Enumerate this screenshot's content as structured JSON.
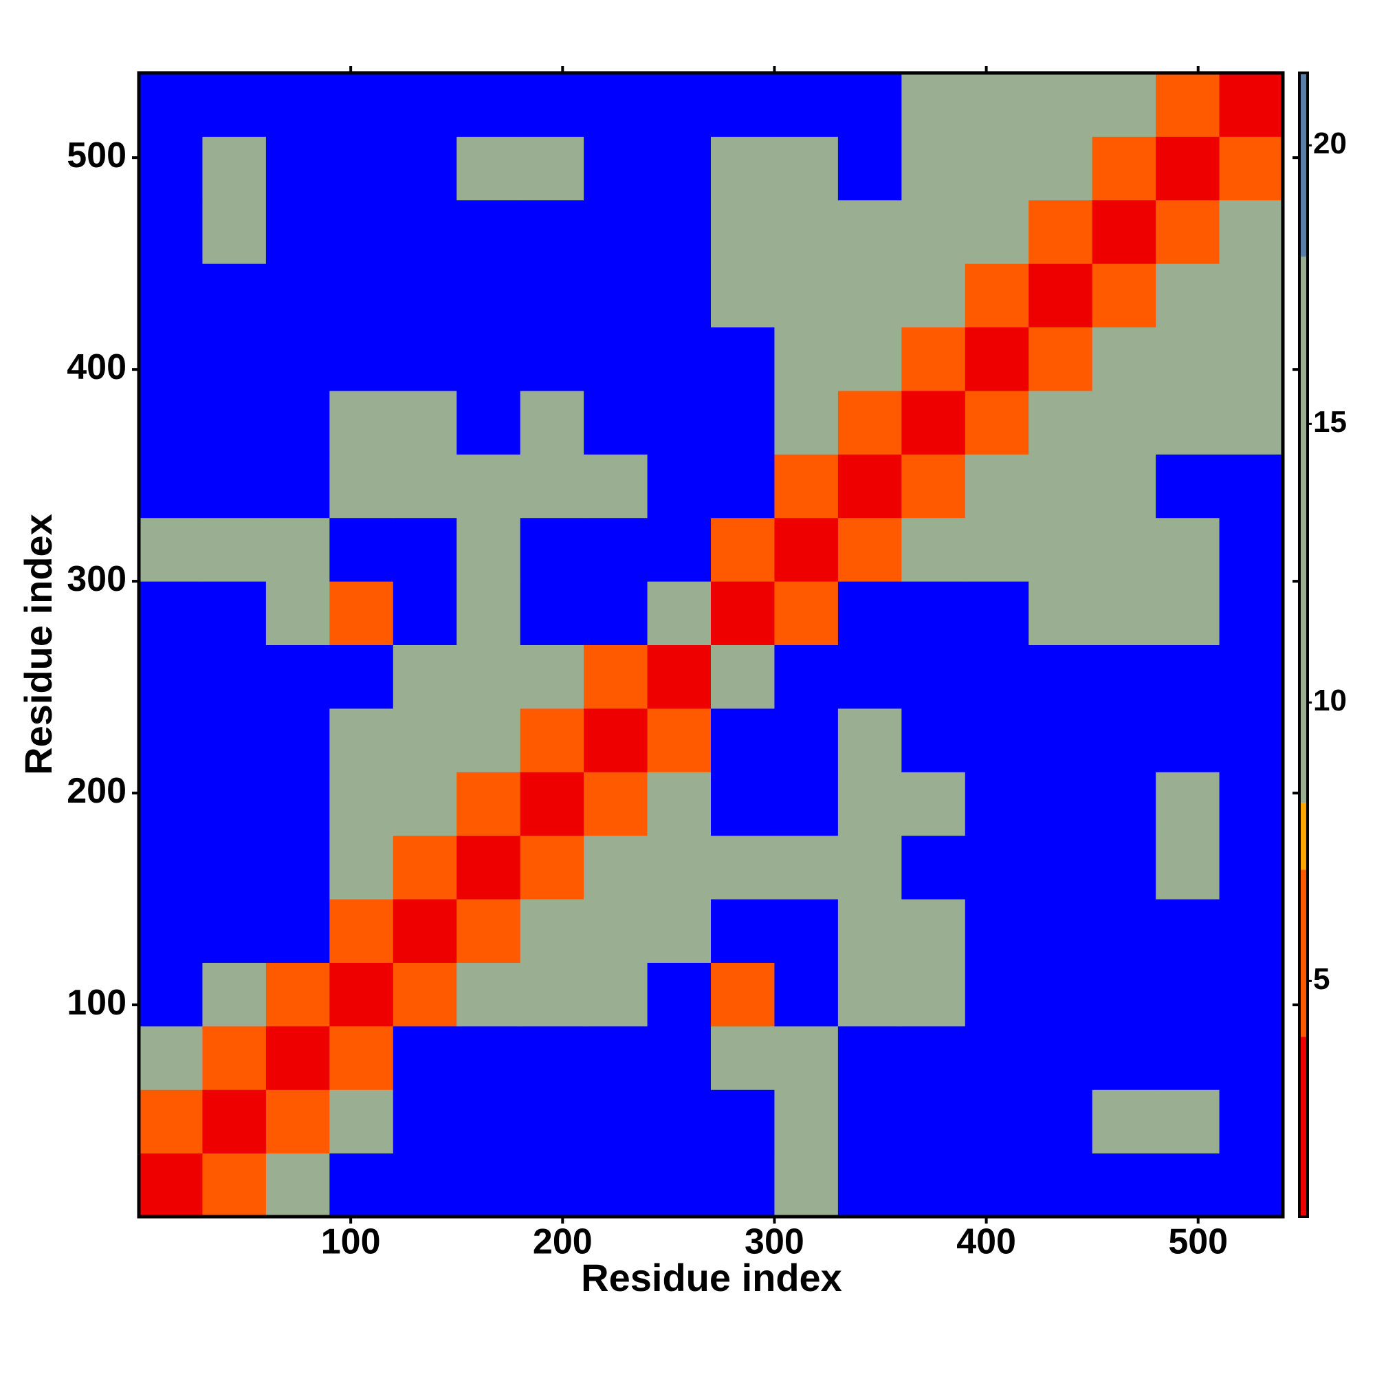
{
  "chart_data": {
    "type": "heatmap",
    "xlabel": "Residue index",
    "ylabel": "Residue index",
    "x_bins": [
      0,
      30,
      60,
      90,
      120,
      150,
      180,
      210,
      240,
      270,
      300,
      330,
      360,
      390,
      420,
      450,
      480,
      510,
      540
    ],
    "y_bins": [
      0,
      30,
      60,
      90,
      120,
      150,
      180,
      210,
      240,
      270,
      300,
      330,
      360,
      390,
      420,
      450,
      480,
      510,
      540
    ],
    "values": [
      [
        3.8,
        6,
        9,
        25,
        25,
        25,
        25,
        25,
        25,
        25,
        9,
        25,
        25,
        25,
        25,
        25,
        25,
        25
      ],
      [
        6,
        3.8,
        6,
        9,
        25,
        25,
        25,
        25,
        25,
        25,
        9,
        25,
        25,
        25,
        25,
        9,
        9,
        25
      ],
      [
        9,
        6,
        3.8,
        6,
        25,
        25,
        25,
        25,
        25,
        9,
        9,
        25,
        25,
        25,
        25,
        25,
        25,
        25
      ],
      [
        25,
        9,
        6,
        3.8,
        6,
        9,
        14,
        9,
        25,
        6,
        25,
        9,
        9,
        25,
        25,
        25,
        25,
        25
      ],
      [
        25,
        25,
        25,
        6,
        3.8,
        6,
        9,
        9,
        9,
        25,
        25,
        9,
        14,
        25,
        25,
        25,
        25,
        25
      ],
      [
        25,
        25,
        25,
        9,
        6,
        3.8,
        6,
        9,
        9,
        9,
        14,
        9,
        25,
        25,
        25,
        25,
        14,
        25
      ],
      [
        25,
        25,
        25,
        14,
        9,
        6,
        3.8,
        6,
        9,
        25,
        25,
        9,
        14,
        25,
        25,
        25,
        9,
        25
      ],
      [
        25,
        25,
        25,
        9,
        9,
        9,
        6,
        3.8,
        6,
        25,
        25,
        14,
        25,
        25,
        25,
        25,
        25,
        25
      ],
      [
        25,
        25,
        25,
        25,
        9,
        9,
        9,
        6,
        3.8,
        9,
        25,
        25,
        25,
        25,
        25,
        25,
        25,
        25
      ],
      [
        25,
        25,
        9,
        6,
        25,
        9,
        25,
        25,
        9,
        3.8,
        6,
        25,
        25,
        25,
        9,
        14,
        9,
        25
      ],
      [
        9,
        9,
        9,
        25,
        25,
        14,
        25,
        25,
        25,
        6,
        3.8,
        6,
        9,
        9,
        9,
        9,
        9,
        25
      ],
      [
        25,
        25,
        25,
        9,
        9,
        9,
        9,
        14,
        25,
        25,
        6,
        3.8,
        6,
        9,
        9,
        14,
        25,
        25
      ],
      [
        25,
        25,
        25,
        9,
        14,
        25,
        14,
        25,
        25,
        25,
        9,
        6,
        3.8,
        6,
        9,
        9,
        14,
        14
      ],
      [
        25,
        25,
        25,
        25,
        25,
        25,
        25,
        25,
        25,
        25,
        9,
        9,
        6,
        3.8,
        6,
        9,
        9,
        14
      ],
      [
        25,
        25,
        25,
        25,
        25,
        25,
        25,
        25,
        25,
        9,
        9,
        9,
        9,
        6,
        3.8,
        6,
        9,
        9
      ],
      [
        25,
        9,
        25,
        25,
        25,
        25,
        25,
        25,
        25,
        14,
        9,
        14,
        9,
        9,
        6,
        3.8,
        6,
        9
      ],
      [
        25,
        9,
        25,
        25,
        25,
        14,
        9,
        25,
        25,
        9,
        9,
        25,
        14,
        9,
        9,
        6,
        3.8,
        6
      ],
      [
        25,
        25,
        25,
        25,
        25,
        25,
        25,
        25,
        25,
        25,
        25,
        25,
        14,
        14,
        9,
        9,
        6,
        3.8
      ]
    ],
    "xlim": [
      0,
      540
    ],
    "ylim": [
      0,
      540
    ],
    "xticks": [
      100,
      200,
      300,
      400,
      500
    ],
    "yticks": [
      100,
      200,
      300,
      400,
      500
    ],
    "clim": [
      0.77,
      21.3
    ],
    "cticks": [
      5,
      10,
      15,
      20
    ],
    "color_steps": [
      {
        "max": 4,
        "color": "#ee0000"
      },
      {
        "max": 7,
        "color": "#ff5a00"
      },
      {
        "max": 8.2,
        "color": "#ffa500"
      },
      {
        "max": 18,
        "color": "#9aae92"
      },
      {
        "max": 21.3,
        "color": "#5a80a8"
      }
    ],
    "over_color": "#0000ff"
  }
}
